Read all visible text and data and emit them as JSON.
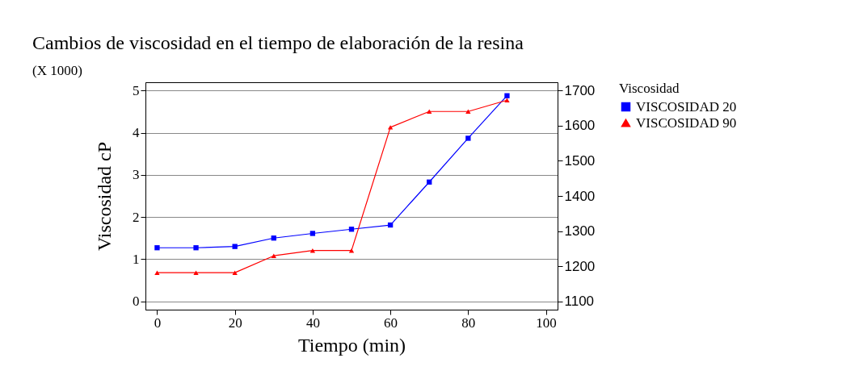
{
  "chart_data": {
    "type": "line",
    "title": "Cambios de viscosidad en el tiempo de elaboración de la resina",
    "xlabel": "Tiempo (min)",
    "ylabel": "Viscosidad cP",
    "legend_title": "Viscosidad",
    "annotations": [
      "(X 1000)"
    ],
    "x": [
      0,
      10,
      20,
      30,
      40,
      50,
      60,
      70,
      80,
      90
    ],
    "series": [
      {
        "name": "VISCOSIDAD 20",
        "color": "#0000ff",
        "marker": "square",
        "values": [
          1.27,
          1.27,
          1.3,
          1.5,
          1.61,
          1.71,
          1.81,
          2.83,
          3.87,
          4.88
        ]
      },
      {
        "name": "VISCOSIDAD 90",
        "color": "#ff0000",
        "marker": "triangle",
        "axis": "y2",
        "values": [
          1182,
          1182,
          1182,
          1230,
          1245,
          1245,
          1595,
          1640,
          1640,
          1672
        ]
      }
    ],
    "xlim": [
      -3,
      103
    ],
    "xticks": [
      0,
      20,
      40,
      60,
      80,
      100
    ],
    "ylim": [
      -0.2,
      5.2
    ],
    "yticks": [
      0,
      1,
      2,
      3,
      4,
      5
    ],
    "y2lim": [
      1077,
      1723
    ],
    "y2ticks": [
      1100,
      1200,
      1300,
      1400,
      1500,
      1600,
      1700
    ],
    "grid": "y",
    "legend": "right"
  }
}
